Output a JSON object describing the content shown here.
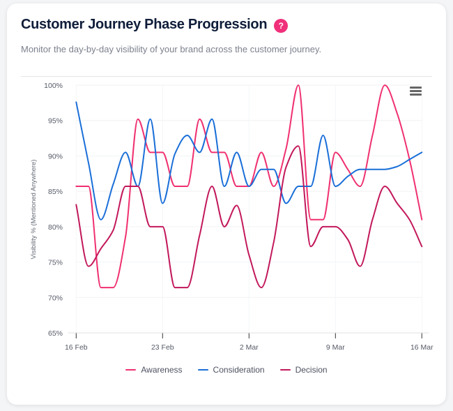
{
  "header": {
    "title": "Customer Journey Phase Progression",
    "help_label": "?",
    "subtitle": "Monitor the day-by-day visibility of your brand across the customer journey."
  },
  "colors": {
    "awareness": "#f0306f",
    "consideration": "#1a6fd8",
    "decision": "#c2185b",
    "help_badge": "#f0307a"
  },
  "menu": {
    "icon": "hamburger-menu-icon"
  },
  "chart_data": {
    "type": "line",
    "title": "Customer Journey Phase Progression",
    "xlabel": "",
    "ylabel": "Visibility % (Mentioned Anywhere)",
    "ylim": [
      65,
      100
    ],
    "yticks": [
      65,
      70,
      75,
      80,
      85,
      90,
      95,
      100
    ],
    "ytick_labels": [
      "65%",
      "70%",
      "75%",
      "80%",
      "85%",
      "90%",
      "95%",
      "100%"
    ],
    "x": [
      "16 Feb",
      "17 Feb",
      "18 Feb",
      "19 Feb",
      "20 Feb",
      "21 Feb",
      "22 Feb",
      "23 Feb",
      "24 Feb",
      "25 Feb",
      "26 Feb",
      "27 Feb",
      "28 Feb",
      "1 Mar",
      "2 Mar",
      "3 Mar",
      "4 Mar",
      "5 Mar",
      "6 Mar",
      "7 Mar",
      "8 Mar",
      "9 Mar",
      "10 Mar",
      "11 Mar",
      "12 Mar",
      "13 Mar",
      "14 Mar",
      "15 Mar",
      "16 Mar"
    ],
    "xtick_indices": [
      0,
      7,
      14,
      21,
      28
    ],
    "xtick_labels": [
      "16 Feb",
      "23 Feb",
      "2 Mar",
      "9 Mar",
      "16 Mar"
    ],
    "grid": true,
    "legend_position": "bottom-center",
    "series": [
      {
        "name": "Awareness",
        "color": "#f0306f",
        "values": [
          85.7,
          85.7,
          71.4,
          71.4,
          78.6,
          95.2,
          90.5,
          90.5,
          85.7,
          85.7,
          95.2,
          90.5,
          90.5,
          85.7,
          85.7,
          90.5,
          85.7,
          91.0,
          100,
          81.0,
          81.0,
          90.5,
          88.1,
          85.7,
          92.9,
          100,
          96.0,
          89.5,
          81.0
        ]
      },
      {
        "name": "Consideration",
        "color": "#1a6fd8",
        "values": [
          97.6,
          89.0,
          81.0,
          86.0,
          90.5,
          85.7,
          95.2,
          83.3,
          90.3,
          92.9,
          90.5,
          95.2,
          85.7,
          90.5,
          85.7,
          88.1,
          88.1,
          83.3,
          85.7,
          85.7,
          92.9,
          85.7,
          87.1,
          88.1,
          88.1,
          88.1,
          88.5,
          89.5,
          90.5
        ]
      },
      {
        "name": "Decision",
        "color": "#c2185b",
        "values": [
          83.1,
          74.4,
          76.9,
          79.5,
          85.7,
          85.7,
          80.0,
          80.0,
          71.4,
          71.4,
          78.8,
          85.7,
          80.0,
          83.0,
          76.0,
          71.4,
          77.8,
          88.4,
          91.4,
          77.2,
          80.0,
          80.0,
          78.2,
          74.4,
          81.0,
          85.7,
          83.3,
          81.0,
          77.2
        ]
      }
    ]
  }
}
